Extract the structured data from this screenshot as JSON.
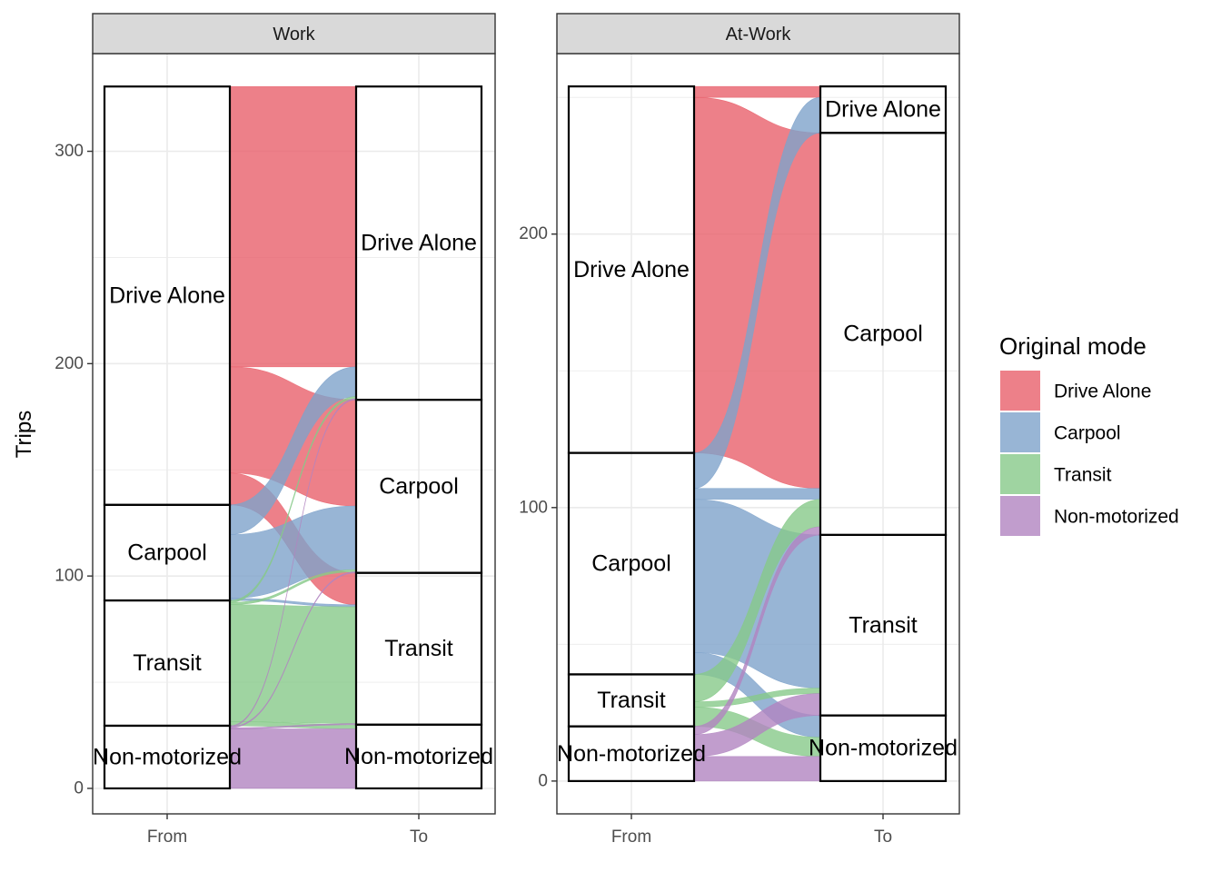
{
  "chart_data": {
    "type": "alluvial",
    "ylabel": "Trips",
    "x_axis": [
      "From",
      "To"
    ],
    "legend": {
      "title": "Original mode",
      "placement": "right",
      "entries": [
        "Drive Alone",
        "Carpool",
        "Transit",
        "Non-motorized"
      ]
    },
    "colors": {
      "Drive Alone": "#E8606C",
      "Carpool": "#7EA3CA",
      "Transit": "#87C98A",
      "Non-motorized": "#B184C0"
    },
    "categories": [
      "Drive Alone",
      "Carpool",
      "Transit",
      "Non-motorized"
    ],
    "panels": [
      {
        "title": "Work",
        "ylim": [
          -12,
          346
        ],
        "yticks": [
          0,
          100,
          200,
          300
        ],
        "flows": [
          {
            "from": "Drive Alone",
            "to": "Drive Alone",
            "value": 132
          },
          {
            "from": "Drive Alone",
            "to": "Carpool",
            "value": 50
          },
          {
            "from": "Drive Alone",
            "to": "Transit",
            "value": 15
          },
          {
            "from": "Carpool",
            "to": "Drive Alone",
            "value": 14
          },
          {
            "from": "Carpool",
            "to": "Carpool",
            "value": 30
          },
          {
            "from": "Carpool",
            "to": "Transit",
            "value": 1
          },
          {
            "from": "Transit",
            "to": "Drive Alone",
            "value": 1
          },
          {
            "from": "Transit",
            "to": "Carpool",
            "value": 1
          },
          {
            "from": "Transit",
            "to": "Transit",
            "value": 55
          },
          {
            "from": "Transit",
            "to": "Non-motorized",
            "value": 2
          },
          {
            "from": "Non-motorized",
            "to": "Drive Alone",
            "value": 0.5
          },
          {
            "from": "Non-motorized",
            "to": "Carpool",
            "value": 0.5
          },
          {
            "from": "Non-motorized",
            "to": "Transit",
            "value": 0.5
          },
          {
            "from": "Non-motorized",
            "to": "Non-motorized",
            "value": 28
          }
        ]
      },
      {
        "title": "At-Work",
        "ylim": [
          -12,
          266
        ],
        "yticks": [
          0,
          100,
          200
        ],
        "flows": [
          {
            "from": "Drive Alone",
            "to": "Drive Alone",
            "value": 4
          },
          {
            "from": "Drive Alone",
            "to": "Carpool",
            "value": 130
          },
          {
            "from": "Carpool",
            "to": "Drive Alone",
            "value": 13
          },
          {
            "from": "Carpool",
            "to": "Carpool",
            "value": 4
          },
          {
            "from": "Carpool",
            "to": "Transit",
            "value": 56
          },
          {
            "from": "Carpool",
            "to": "Non-motorized",
            "value": 8
          },
          {
            "from": "Transit",
            "to": "Carpool",
            "value": 10
          },
          {
            "from": "Transit",
            "to": "Transit",
            "value": 2
          },
          {
            "from": "Transit",
            "to": "Non-motorized",
            "value": 7
          },
          {
            "from": "Non-motorized",
            "to": "Carpool",
            "value": 3
          },
          {
            "from": "Non-motorized",
            "to": "Transit",
            "value": 8
          },
          {
            "from": "Non-motorized",
            "to": "Non-motorized",
            "value": 9
          }
        ]
      }
    ]
  }
}
